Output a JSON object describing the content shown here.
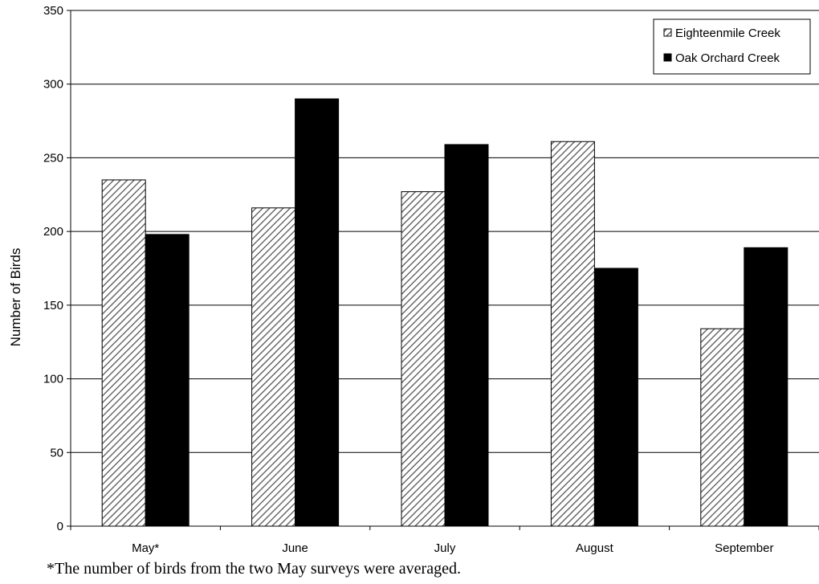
{
  "chart_data": {
    "type": "bar",
    "categories": [
      "May*",
      "June",
      "July",
      "August",
      "September"
    ],
    "series": [
      {
        "name": "Eighteenmile Creek",
        "values": [
          235,
          216,
          227,
          261,
          134
        ],
        "fill": "hatch"
      },
      {
        "name": "Oak Orchard Creek",
        "values": [
          198,
          290,
          259,
          175,
          189
        ],
        "fill": "#000000"
      }
    ],
    "xlabel": "",
    "ylabel": "Number of Birds",
    "ylim": [
      0,
      350
    ],
    "yticks": [
      0,
      50,
      100,
      150,
      200,
      250,
      300,
      350
    ],
    "grid": true,
    "legend_position": "top-right"
  },
  "footnote": "*The number of birds from the two May surveys were averaged.",
  "colors": {
    "grid": "#000000",
    "bar_outline": "#000000",
    "hatch_line": "#555555",
    "solid_bar": "#000000"
  }
}
